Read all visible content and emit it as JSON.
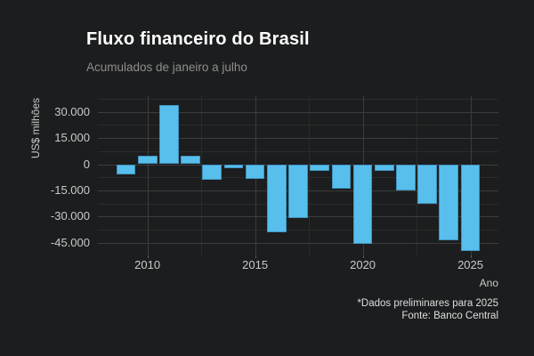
{
  "header": {
    "title": "Fluxo financeiro do Brasil",
    "subtitle": "Acumulados de janeiro a julho"
  },
  "footer": {
    "note": "*Dados preliminares para 2025",
    "source": "Fonte: Banco Central"
  },
  "colors": {
    "background": "#1C1D1E",
    "bar_fill": "#58BFED",
    "bar_border": "#3F93BE",
    "grid_major": "#3C3C3C",
    "grid_minor": "#2B2B2B",
    "title_text": "#FFFFFF",
    "subtitle_text": "#8E8E8E",
    "axis_text": "#C9C9C9",
    "footer_text": "#DEDEDE"
  },
  "chart_data": {
    "type": "bar",
    "title": "Fluxo financeiro do Brasil",
    "subtitle": "Acumulados de janeiro a julho",
    "xlabel": "Ano",
    "ylabel": "US$ milhões",
    "x": [
      2009,
      2010,
      2011,
      2012,
      2013,
      2014,
      2015,
      2016,
      2017,
      2018,
      2019,
      2020,
      2021,
      2022,
      2023,
      2024,
      2025
    ],
    "values": [
      -6000,
      4600,
      34000,
      5000,
      -8800,
      -2500,
      -8300,
      -39000,
      -30800,
      -3700,
      -13800,
      -45600,
      -4000,
      -15000,
      -22800,
      -43600,
      -49500
    ],
    "x_ticks": [
      2010,
      2015,
      2020,
      2025
    ],
    "y_ticks": [
      30000,
      15000,
      0,
      -15000,
      -30000,
      -45000
    ],
    "y_tick_labels": [
      "30.000",
      "15.000",
      "0",
      "-15.000",
      "-30.000",
      "-45.000"
    ],
    "xlim": [
      2007.7,
      2026.3
    ],
    "ylim": [
      -52000,
      39000
    ],
    "bar_width_years": 0.9,
    "grid": true,
    "legend": false
  }
}
